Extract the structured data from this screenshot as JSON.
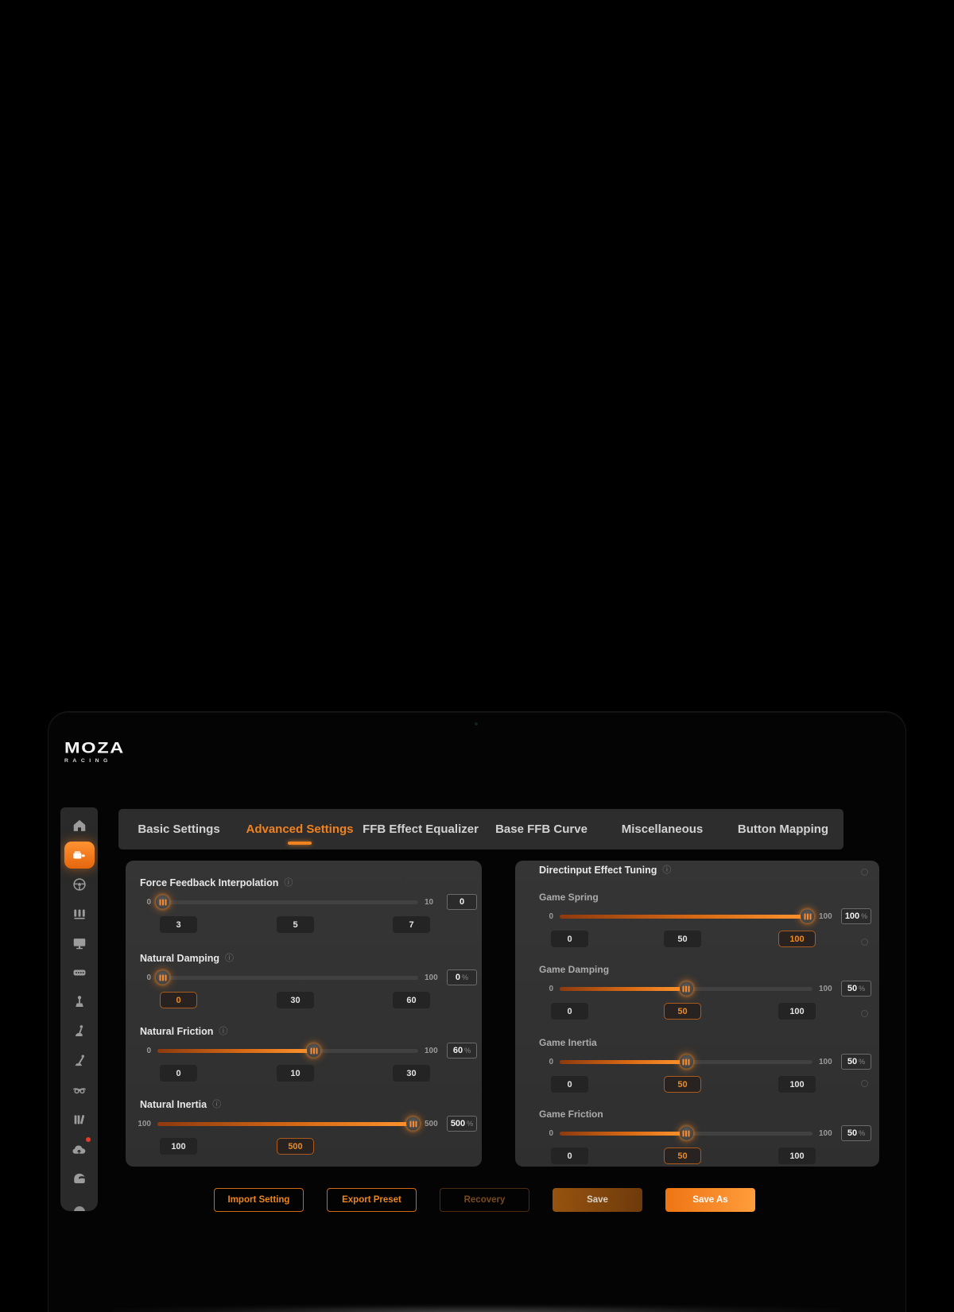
{
  "brand": {
    "logo_main": "MOZA",
    "logo_sub": "RACING"
  },
  "accent_color": "#f08220",
  "badge_color": "#e8392c",
  "tabs": [
    {
      "label": "Basic Settings",
      "active": false
    },
    {
      "label": "Advanced Settings",
      "active": true
    },
    {
      "label": "FFB Effect Equalizer",
      "active": false
    },
    {
      "label": "Base FFB Curve",
      "active": false
    },
    {
      "label": "Miscellaneous",
      "active": false
    },
    {
      "label": "Button Mapping",
      "active": false
    }
  ],
  "sidebar": {
    "items": [
      {
        "icon": "home",
        "active": false
      },
      {
        "icon": "wheelbase",
        "active": true
      },
      {
        "icon": "steering-wheel",
        "active": false
      },
      {
        "icon": "pedals",
        "active": false
      },
      {
        "icon": "monitor",
        "active": false
      },
      {
        "icon": "button-box",
        "active": false
      },
      {
        "icon": "handbrake",
        "active": false
      },
      {
        "icon": "shifter",
        "active": false
      },
      {
        "icon": "lever",
        "active": false
      },
      {
        "icon": "goggles",
        "active": false
      },
      {
        "icon": "library",
        "active": false
      },
      {
        "icon": "cloud-sync",
        "active": false,
        "badge": true
      },
      {
        "icon": "helmet",
        "active": false
      }
    ]
  },
  "left_panel": {
    "sections": [
      {
        "title": "Force Feedback Interpolation",
        "has_info": true,
        "min": "0",
        "max": "10",
        "value": "0",
        "unit": "",
        "percent": 0,
        "presets": [
          {
            "label": "3",
            "slot": 0
          },
          {
            "label": "5",
            "slot": 1
          },
          {
            "label": "7",
            "slot": 2
          }
        ]
      },
      {
        "title": "Natural Damping",
        "has_info": true,
        "min": "0",
        "max": "100",
        "value": "0",
        "unit": "%",
        "percent": 0,
        "presets": [
          {
            "label": "0",
            "slot": 0,
            "selected": true
          },
          {
            "label": "30",
            "slot": 1
          },
          {
            "label": "60",
            "slot": 2
          }
        ]
      },
      {
        "title": "Natural Friction",
        "has_info": true,
        "min": "0",
        "max": "100",
        "value": "60",
        "unit": "%",
        "percent": 60,
        "presets": [
          {
            "label": "0",
            "slot": 0
          },
          {
            "label": "10",
            "slot": 1
          },
          {
            "label": "30",
            "slot": 2
          }
        ]
      },
      {
        "title": "Natural Inertia",
        "has_info": true,
        "min": "100",
        "max": "500",
        "value": "500",
        "unit": "%",
        "percent": 100,
        "presets": [
          {
            "label": "100",
            "slot": 0
          },
          {
            "label": "500",
            "slot": 1,
            "selected": true
          }
        ]
      }
    ]
  },
  "right_panel": {
    "title": "Directinput Effect Tuning",
    "has_info": true,
    "sections": [
      {
        "title": "Game Spring",
        "min": "0",
        "max": "100",
        "value": "100",
        "unit": "%",
        "percent": 100,
        "presets": [
          {
            "label": "0",
            "slot": 0
          },
          {
            "label": "50",
            "slot": 1
          },
          {
            "label": "100",
            "slot": 2,
            "selected": true
          }
        ]
      },
      {
        "title": "Game Damping",
        "min": "0",
        "max": "100",
        "value": "50",
        "unit": "%",
        "percent": 50,
        "presets": [
          {
            "label": "0",
            "slot": 0
          },
          {
            "label": "50",
            "slot": 1,
            "selected": true
          },
          {
            "label": "100",
            "slot": 2
          }
        ]
      },
      {
        "title": "Game Inertia",
        "min": "0",
        "max": "100",
        "value": "50",
        "unit": "%",
        "percent": 50,
        "presets": [
          {
            "label": "0",
            "slot": 0
          },
          {
            "label": "50",
            "slot": 1,
            "selected": true
          },
          {
            "label": "100",
            "slot": 2
          }
        ]
      },
      {
        "title": "Game Friction",
        "min": "0",
        "max": "100",
        "value": "50",
        "unit": "%",
        "percent": 50,
        "presets": [
          {
            "label": "0",
            "slot": 0
          },
          {
            "label": "50",
            "slot": 1,
            "selected": true
          },
          {
            "label": "100",
            "slot": 2
          }
        ]
      }
    ]
  },
  "footer": {
    "buttons": [
      {
        "label": "Import Setting",
        "style": "outline"
      },
      {
        "label": "Export Preset",
        "style": "outline"
      },
      {
        "label": "Recovery",
        "style": "outline-disabled"
      },
      {
        "label": "Save",
        "style": "filled-dim"
      },
      {
        "label": "Save As",
        "style": "filled"
      }
    ]
  }
}
